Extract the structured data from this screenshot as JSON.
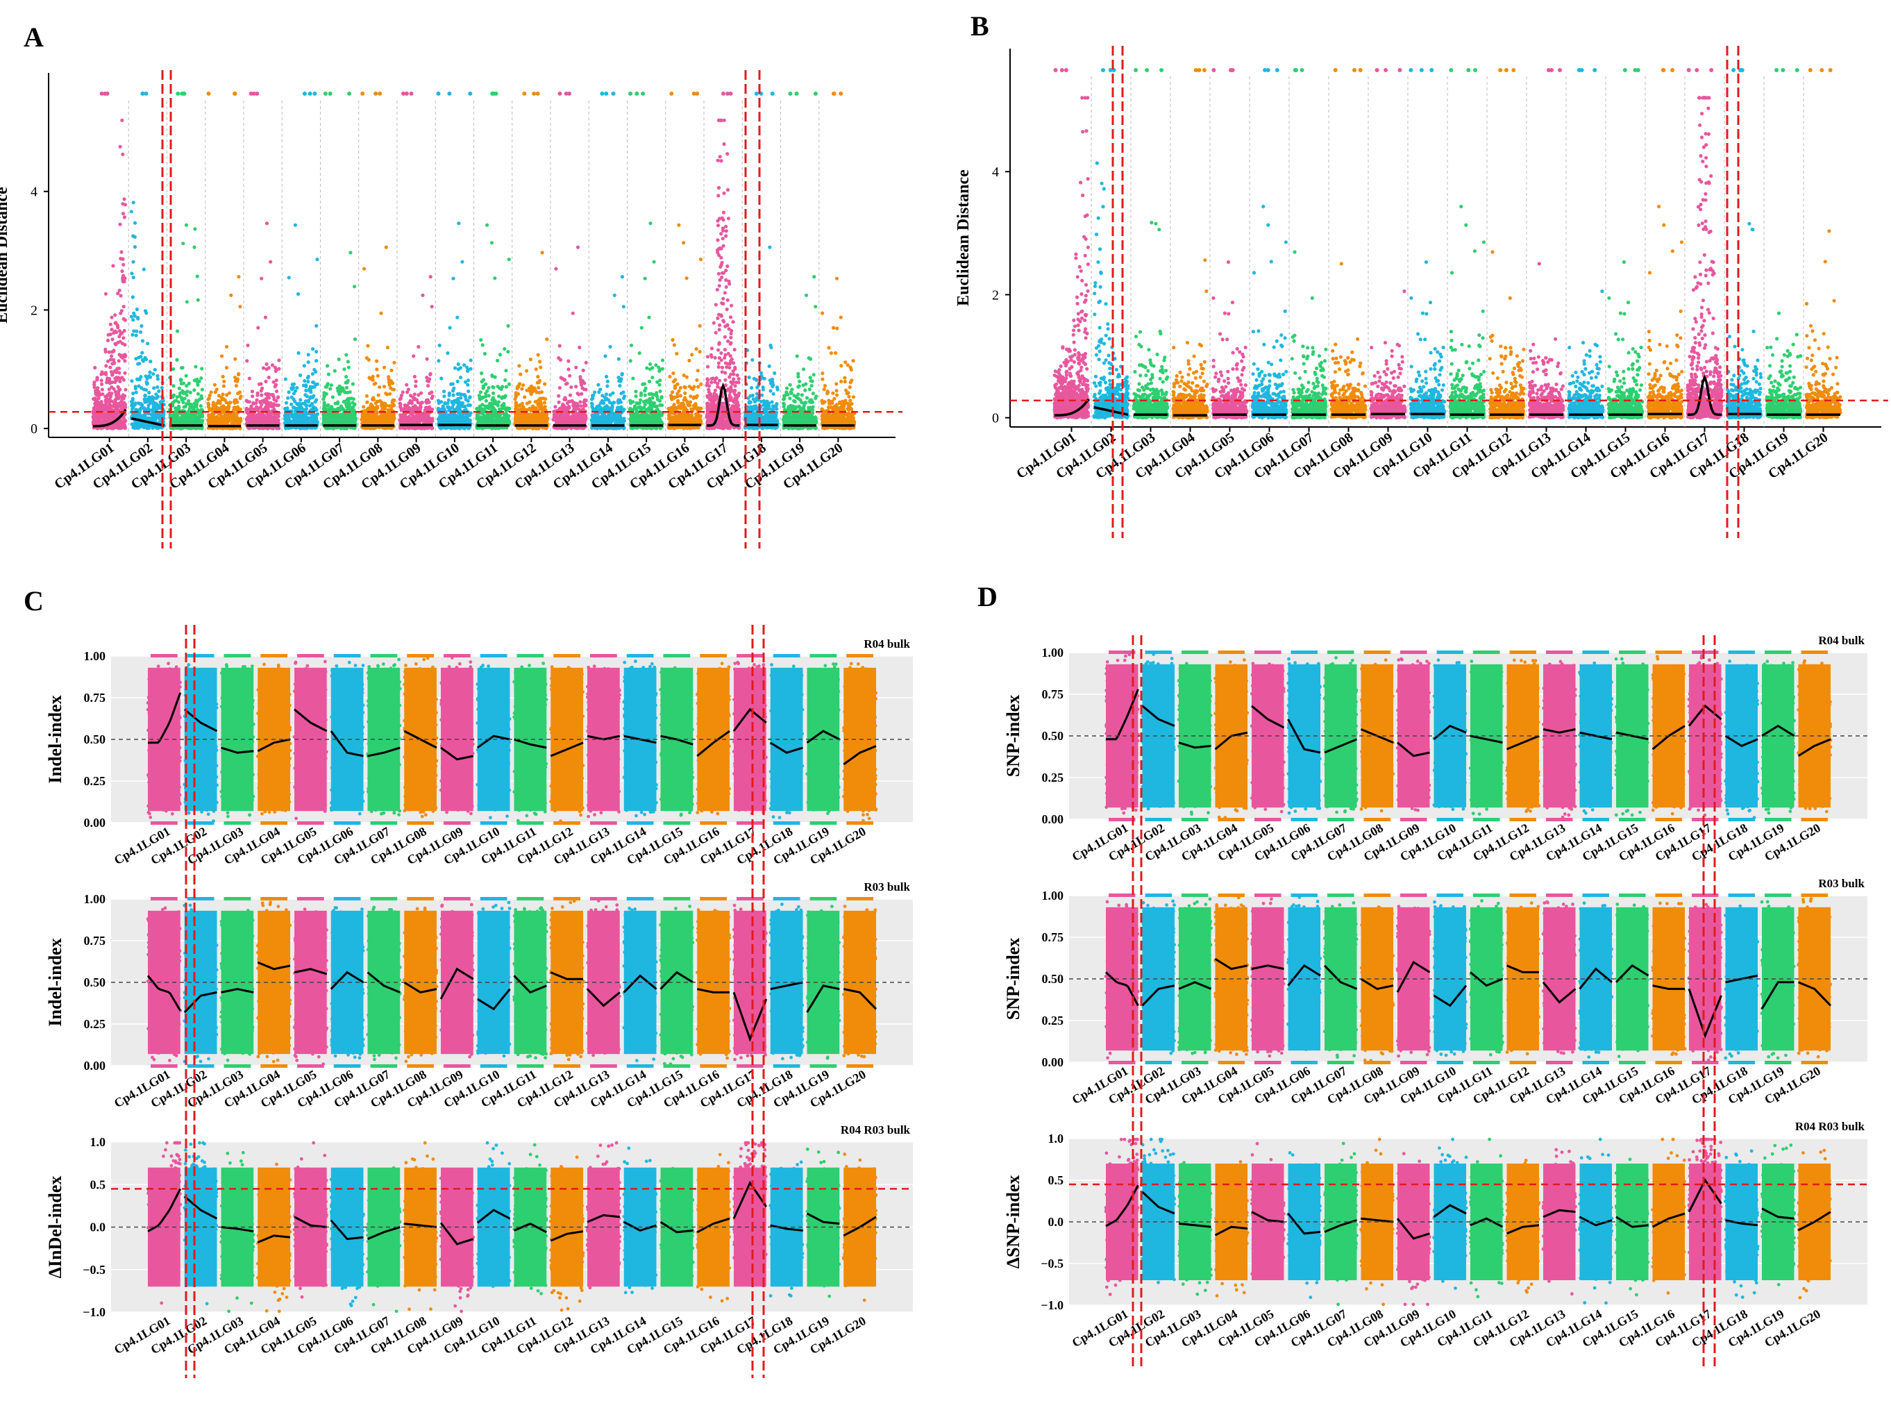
{
  "figure": {
    "panels": [
      {
        "letter": "A",
        "ylabel": "Euclidean Distance"
      },
      {
        "letter": "B",
        "ylabel": "Euclidean Distance"
      },
      {
        "letter": "C"
      },
      {
        "letter": "D"
      }
    ]
  },
  "colors": {
    "pink": "#e8579e",
    "cyan": "#1fb7e0",
    "green": "#2ecf70",
    "orange": "#f08c0a",
    "threshold": "#e31a1c",
    "gridline": "#bbbbbb",
    "ggbg": "#ebebeb"
  },
  "chart_data": [
    {
      "panel": "A",
      "type": "scatter",
      "title": "",
      "ylabel": "Euclidean Distance",
      "xlabel": "",
      "ylim": [
        -0.15,
        6.0
      ],
      "yticks": [
        0,
        2,
        4
      ],
      "threshold": 0.28,
      "chromosomes": [
        "Cp4.1LG01",
        "Cp4.1LG02",
        "Cp4.1LG03",
        "Cp4.1LG04",
        "Cp4.1LG05",
        "Cp4.1LG06",
        "Cp4.1LG07",
        "Cp4.1LG08",
        "Cp4.1LG09",
        "Cp4.1LG10",
        "Cp4.1LG11",
        "Cp4.1LG12",
        "Cp4.1LG13",
        "Cp4.1LG14",
        "Cp4.1LG15",
        "Cp4.1LG16",
        "Cp4.1LG17",
        "Cp4.1LG18",
        "Cp4.1LG19",
        "Cp4.1LG20"
      ],
      "color_cycle": [
        "pink",
        "cyan",
        "green",
        "orange"
      ],
      "peaks": [
        0.32,
        0.12,
        0.05,
        0.04,
        0.05,
        0.05,
        0.05,
        0.05,
        0.06,
        0.06,
        0.05,
        0.05,
        0.05,
        0.05,
        0.05,
        0.06,
        0.72,
        0.06,
        0.05,
        0.05
      ],
      "highlight_regions": [
        "Cp4.1LG01/Cp4.1LG02 boundary",
        "Cp4.1LG17"
      ]
    },
    {
      "panel": "B",
      "type": "scatter",
      "title": "",
      "ylabel": "Euclidean Distance",
      "xlabel": "",
      "ylim": [
        -0.15,
        6.0
      ],
      "yticks": [
        0,
        2,
        4
      ],
      "threshold": 0.28,
      "chromosomes": [
        "Cp4.1LG01",
        "Cp4.1LG02",
        "Cp4.1LG03",
        "Cp4.1LG04",
        "Cp4.1LG05",
        "Cp4.1LG06",
        "Cp4.1LG07",
        "Cp4.1LG08",
        "Cp4.1LG09",
        "Cp4.1LG10",
        "Cp4.1LG11",
        "Cp4.1LG12",
        "Cp4.1LG13",
        "Cp4.1LG14",
        "Cp4.1LG15",
        "Cp4.1LG16",
        "Cp4.1LG17",
        "Cp4.1LG18",
        "Cp4.1LG19",
        "Cp4.1LG20"
      ],
      "color_cycle": [
        "pink",
        "cyan",
        "green",
        "orange"
      ],
      "peaks": [
        0.3,
        0.12,
        0.05,
        0.04,
        0.05,
        0.05,
        0.05,
        0.05,
        0.06,
        0.06,
        0.05,
        0.05,
        0.05,
        0.05,
        0.05,
        0.06,
        0.65,
        0.06,
        0.05,
        0.05
      ],
      "highlight_regions": [
        "Cp4.1LG01/Cp4.1LG02 boundary",
        "Cp4.1LG17"
      ]
    },
    {
      "panel": "C-top",
      "type": "scatter",
      "facet_label": "R04 bulk",
      "ylabel": "Indel-index",
      "ylim": [
        0,
        1
      ],
      "yticks": [
        "0.00",
        "0.25",
        "0.50",
        "0.75",
        "1.00"
      ],
      "reference": 0.5,
      "chromosomes": [
        "Cp4.1LG01",
        "Cp4.1LG02",
        "Cp4.1LG03",
        "Cp4.1LG04",
        "Cp4.1LG05",
        "Cp4.1LG06",
        "Cp4.1LG07",
        "Cp4.1LG08",
        "Cp4.1LG09",
        "Cp4.1LG10",
        "Cp4.1LG11",
        "Cp4.1LG12",
        "Cp4.1LG13",
        "Cp4.1LG14",
        "Cp4.1LG15",
        "Cp4.1LG16",
        "Cp4.1LG17",
        "Cp4.1LG18",
        "Cp4.1LG19",
        "Cp4.1LG20"
      ],
      "trend": [
        [
          0.48,
          0.48,
          0.6,
          0.78
        ],
        [
          0.68,
          0.6,
          0.55
        ],
        [
          0.45,
          0.42,
          0.43
        ],
        [
          0.43,
          0.48,
          0.5
        ],
        [
          0.68,
          0.6,
          0.55
        ],
        [
          0.55,
          0.42,
          0.4
        ],
        [
          0.4,
          0.42,
          0.45
        ],
        [
          0.55,
          0.5,
          0.45
        ],
        [
          0.45,
          0.38,
          0.4
        ],
        [
          0.45,
          0.52,
          0.5
        ],
        [
          0.5,
          0.47,
          0.45
        ],
        [
          0.4,
          0.44,
          0.48
        ],
        [
          0.52,
          0.5,
          0.52
        ],
        [
          0.52,
          0.5,
          0.48
        ],
        [
          0.52,
          0.5,
          0.47
        ],
        [
          0.4,
          0.48,
          0.55
        ],
        [
          0.55,
          0.68,
          0.6
        ],
        [
          0.48,
          0.42,
          0.45
        ],
        [
          0.48,
          0.55,
          0.5
        ],
        [
          0.35,
          0.42,
          0.46
        ]
      ]
    },
    {
      "panel": "C-mid",
      "type": "scatter",
      "facet_label": "R03 bulk",
      "ylabel": "Indel-index",
      "ylim": [
        0,
        1
      ],
      "yticks": [
        "0.00",
        "0.25",
        "0.50",
        "0.75",
        "1.00"
      ],
      "reference": 0.5,
      "chromosomes": [
        "Cp4.1LG01",
        "Cp4.1LG02",
        "Cp4.1LG03",
        "Cp4.1LG04",
        "Cp4.1LG05",
        "Cp4.1LG06",
        "Cp4.1LG07",
        "Cp4.1LG08",
        "Cp4.1LG09",
        "Cp4.1LG10",
        "Cp4.1LG11",
        "Cp4.1LG12",
        "Cp4.1LG13",
        "Cp4.1LG14",
        "Cp4.1LG15",
        "Cp4.1LG16",
        "Cp4.1LG17",
        "Cp4.1LG18",
        "Cp4.1LG19",
        "Cp4.1LG20"
      ],
      "trend": [
        [
          0.54,
          0.46,
          0.44,
          0.33
        ],
        [
          0.32,
          0.42,
          0.44
        ],
        [
          0.44,
          0.46,
          0.44
        ],
        [
          0.62,
          0.58,
          0.6
        ],
        [
          0.56,
          0.58,
          0.55
        ],
        [
          0.46,
          0.56,
          0.5
        ],
        [
          0.56,
          0.48,
          0.44
        ],
        [
          0.5,
          0.44,
          0.46
        ],
        [
          0.4,
          0.58,
          0.52
        ],
        [
          0.4,
          0.34,
          0.46
        ],
        [
          0.54,
          0.44,
          0.48
        ],
        [
          0.56,
          0.52,
          0.52
        ],
        [
          0.46,
          0.36,
          0.44
        ],
        [
          0.44,
          0.54,
          0.46
        ],
        [
          0.46,
          0.56,
          0.5
        ],
        [
          0.46,
          0.44,
          0.44
        ],
        [
          0.44,
          0.16,
          0.4
        ],
        [
          0.46,
          0.48,
          0.5
        ],
        [
          0.32,
          0.48,
          0.46
        ],
        [
          0.46,
          0.44,
          0.34
        ]
      ]
    },
    {
      "panel": "C-bottom",
      "type": "scatter",
      "facet_label": "R04 R03 bulk",
      "ylabel": "ΔInDel-index",
      "ylim": [
        -1,
        1
      ],
      "yticks": [
        "−1.0",
        "−0.5",
        "0.0",
        "0.5",
        "1.0"
      ],
      "reference": 0.0,
      "threshold": 0.45,
      "chromosomes": [
        "Cp4.1LG01",
        "Cp4.1LG02",
        "Cp4.1LG03",
        "Cp4.1LG04",
        "Cp4.1LG05",
        "Cp4.1LG06",
        "Cp4.1LG07",
        "Cp4.1LG08",
        "Cp4.1LG09",
        "Cp4.1LG10",
        "Cp4.1LG11",
        "Cp4.1LG12",
        "Cp4.1LG13",
        "Cp4.1LG14",
        "Cp4.1LG15",
        "Cp4.1LG16",
        "Cp4.1LG17",
        "Cp4.1LG18",
        "Cp4.1LG19",
        "Cp4.1LG20"
      ],
      "trend": [
        [
          -0.05,
          0.02,
          0.2,
          0.45
        ],
        [
          0.36,
          0.2,
          0.1
        ],
        [
          0.0,
          -0.02,
          -0.05
        ],
        [
          -0.18,
          -0.1,
          -0.12
        ],
        [
          0.12,
          0.02,
          0.0
        ],
        [
          0.08,
          -0.14,
          -0.12
        ],
        [
          -0.14,
          -0.06,
          0.0
        ],
        [
          0.04,
          0.02,
          0.0
        ],
        [
          0.05,
          -0.2,
          -0.14
        ],
        [
          0.05,
          0.2,
          0.1
        ],
        [
          -0.04,
          0.04,
          -0.06
        ],
        [
          -0.16,
          -0.08,
          -0.05
        ],
        [
          0.06,
          0.14,
          0.12
        ],
        [
          0.06,
          -0.04,
          0.02
        ],
        [
          0.06,
          -0.06,
          -0.04
        ],
        [
          -0.06,
          0.04,
          0.1
        ],
        [
          0.1,
          0.52,
          0.24
        ],
        [
          0.02,
          -0.02,
          -0.04
        ],
        [
          0.16,
          0.06,
          0.04
        ],
        [
          -0.1,
          0.0,
          0.12
        ]
      ]
    },
    {
      "panel": "D-top",
      "type": "scatter",
      "facet_label": "R04 bulk",
      "ylabel": "SNP-index",
      "ylim": [
        0,
        1
      ],
      "yticks": [
        "0.00",
        "0.25",
        "0.50",
        "0.75",
        "1.00"
      ],
      "reference": 0.5,
      "chromosomes": [
        "Cp4.1LG01",
        "Cp4.1LG02",
        "Cp4.1LG03",
        "Cp4.1LG04",
        "Cp4.1LG05",
        "Cp4.1LG06",
        "Cp4.1LG07",
        "Cp4.1LG08",
        "Cp4.1LG09",
        "Cp4.1LG10",
        "Cp4.1LG11",
        "Cp4.1LG12",
        "Cp4.1LG13",
        "Cp4.1LG14",
        "Cp4.1LG15",
        "Cp4.1LG16",
        "Cp4.1LG17",
        "Cp4.1LG18",
        "Cp4.1LG19",
        "Cp4.1LG20"
      ],
      "trend": [
        [
          0.48,
          0.48,
          0.62,
          0.78
        ],
        [
          0.68,
          0.6,
          0.56
        ],
        [
          0.46,
          0.43,
          0.44
        ],
        [
          0.42,
          0.5,
          0.52
        ],
        [
          0.68,
          0.6,
          0.55
        ],
        [
          0.6,
          0.42,
          0.4
        ],
        [
          0.4,
          0.44,
          0.48
        ],
        [
          0.54,
          0.5,
          0.46
        ],
        [
          0.46,
          0.38,
          0.4
        ],
        [
          0.48,
          0.56,
          0.52
        ],
        [
          0.5,
          0.48,
          0.46
        ],
        [
          0.42,
          0.46,
          0.5
        ],
        [
          0.54,
          0.52,
          0.54
        ],
        [
          0.52,
          0.5,
          0.48
        ],
        [
          0.52,
          0.5,
          0.48
        ],
        [
          0.42,
          0.5,
          0.56
        ],
        [
          0.56,
          0.68,
          0.6
        ],
        [
          0.5,
          0.44,
          0.48
        ],
        [
          0.5,
          0.56,
          0.5
        ],
        [
          0.38,
          0.44,
          0.48
        ]
      ]
    },
    {
      "panel": "D-mid",
      "type": "scatter",
      "facet_label": "R03 bulk",
      "ylabel": "SNP-index",
      "ylim": [
        0,
        1
      ],
      "yticks": [
        "0.00",
        "0.25",
        "0.50",
        "0.75",
        "1.00"
      ],
      "reference": 0.5,
      "chromosomes": [
        "Cp4.1LG01",
        "Cp4.1LG02",
        "Cp4.1LG03",
        "Cp4.1LG04",
        "Cp4.1LG05",
        "Cp4.1LG06",
        "Cp4.1LG07",
        "Cp4.1LG08",
        "Cp4.1LG09",
        "Cp4.1LG10",
        "Cp4.1LG11",
        "Cp4.1LG12",
        "Cp4.1LG13",
        "Cp4.1LG14",
        "Cp4.1LG15",
        "Cp4.1LG16",
        "Cp4.1LG17",
        "Cp4.1LG18",
        "Cp4.1LG19",
        "Cp4.1LG20"
      ],
      "trend": [
        [
          0.54,
          0.48,
          0.46,
          0.34
        ],
        [
          0.34,
          0.44,
          0.46
        ],
        [
          0.44,
          0.48,
          0.44
        ],
        [
          0.62,
          0.56,
          0.58
        ],
        [
          0.56,
          0.58,
          0.56
        ],
        [
          0.46,
          0.58,
          0.52
        ],
        [
          0.58,
          0.48,
          0.44
        ],
        [
          0.5,
          0.44,
          0.46
        ],
        [
          0.42,
          0.6,
          0.54
        ],
        [
          0.4,
          0.34,
          0.46
        ],
        [
          0.54,
          0.46,
          0.5
        ],
        [
          0.58,
          0.54,
          0.54
        ],
        [
          0.48,
          0.36,
          0.44
        ],
        [
          0.44,
          0.56,
          0.48
        ],
        [
          0.48,
          0.58,
          0.52
        ],
        [
          0.46,
          0.44,
          0.44
        ],
        [
          0.44,
          0.16,
          0.4
        ],
        [
          0.48,
          0.5,
          0.52
        ],
        [
          0.32,
          0.48,
          0.48
        ],
        [
          0.48,
          0.44,
          0.34
        ]
      ]
    },
    {
      "panel": "D-bottom",
      "type": "scatter",
      "facet_label": "R04 R03 bulk",
      "ylabel": "ΔSNP-index",
      "ylim": [
        -1,
        1
      ],
      "yticks": [
        "−1.0",
        "−0.5",
        "0.0",
        "0.5",
        "1.0"
      ],
      "reference": 0.0,
      "threshold": 0.45,
      "chromosomes": [
        "Cp4.1LG01",
        "Cp4.1LG02",
        "Cp4.1LG03",
        "Cp4.1LG04",
        "Cp4.1LG05",
        "Cp4.1LG06",
        "Cp4.1LG07",
        "Cp4.1LG08",
        "Cp4.1LG09",
        "Cp4.1LG10",
        "Cp4.1LG11",
        "Cp4.1LG12",
        "Cp4.1LG13",
        "Cp4.1LG14",
        "Cp4.1LG15",
        "Cp4.1LG16",
        "Cp4.1LG17",
        "Cp4.1LG18",
        "Cp4.1LG19",
        "Cp4.1LG20"
      ],
      "trend": [
        [
          -0.05,
          0.02,
          0.2,
          0.44
        ],
        [
          0.36,
          0.18,
          0.1
        ],
        [
          -0.02,
          -0.04,
          -0.06
        ],
        [
          -0.16,
          -0.06,
          -0.08
        ],
        [
          0.12,
          0.02,
          0.0
        ],
        [
          0.1,
          -0.14,
          -0.12
        ],
        [
          -0.12,
          -0.04,
          0.02
        ],
        [
          0.04,
          0.02,
          0.0
        ],
        [
          0.04,
          -0.2,
          -0.14
        ],
        [
          0.06,
          0.2,
          0.1
        ],
        [
          -0.04,
          0.04,
          -0.06
        ],
        [
          -0.14,
          -0.06,
          -0.04
        ],
        [
          0.06,
          0.14,
          0.12
        ],
        [
          0.06,
          -0.04,
          0.02
        ],
        [
          0.06,
          -0.06,
          -0.04
        ],
        [
          -0.06,
          0.04,
          0.1
        ],
        [
          0.12,
          0.5,
          0.22
        ],
        [
          0.02,
          -0.02,
          -0.04
        ],
        [
          0.16,
          0.06,
          0.04
        ],
        [
          -0.1,
          0.0,
          0.12
        ]
      ]
    }
  ]
}
